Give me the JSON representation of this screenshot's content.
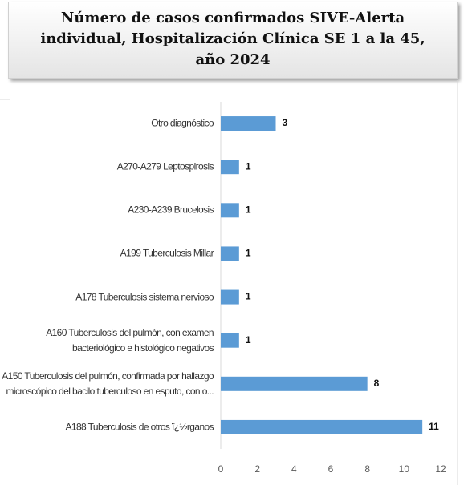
{
  "chart_data": {
    "type": "bar",
    "orientation": "horizontal",
    "title": "Número de casos confirmados SIVE-Alerta\nindividual, Hospitalización Clínica SE 1 a la 45,\naño 2024",
    "categories": [
      "Otro diagnóstico",
      "A270-A279 Leptospirosis",
      "A230-A239 Brucelosis",
      "A199 Tuberculosis Millar",
      "A178 Tuberculosis sistema nervioso",
      "A160 Tuberculosis del pulmón, con examen\nbacteriológico e histológico negativos",
      "A150 Tuberculosis del pulmón, confirmada por hallazgo\nmicroscópico del bacilo tuberculoso en esputo, con o...",
      "A188 Tuberculosis de otros ï¿½rganos"
    ],
    "values": [
      3,
      1,
      1,
      1,
      1,
      1,
      8,
      11
    ],
    "color": "#5b9bd5",
    "xlim": [
      0,
      12
    ],
    "xticks": [
      0,
      2,
      4,
      6,
      8,
      10,
      12
    ],
    "grid": false
  }
}
